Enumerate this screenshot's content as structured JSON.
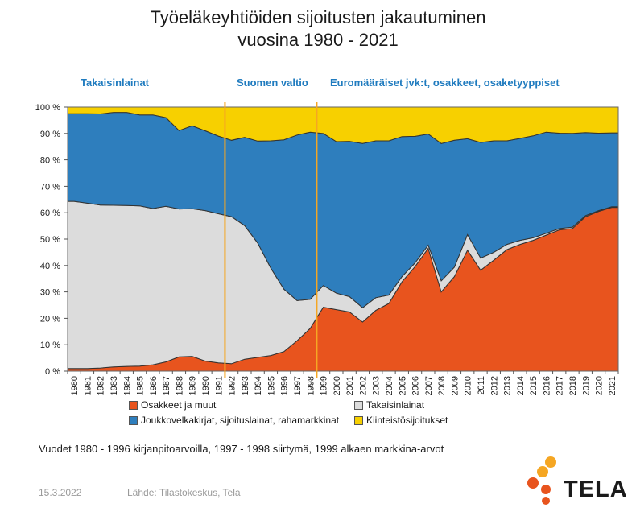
{
  "header": {
    "title_line1": "Työeläkeyhtiöiden sijoitusten jakautuminen",
    "title_line2": "vuosina 1980 - 2021"
  },
  "regions": {
    "left": "Takaisinlainat",
    "middle": "Suomen valtio",
    "right": "Euromääräiset jvk:t, osakkeet, osaketyyppiset"
  },
  "footnote": "Vuodet 1980 - 1996 kirjanpitoarvoilla, 1997 - 1998 siirtymä, 1999 alkaen markkina-arvot",
  "footer": {
    "date": "15.3.2022",
    "source": "Lähde: Tilastokeskus, Tela"
  },
  "logo": {
    "text": "TELA",
    "colors": [
      "#f5a623",
      "#e8541e"
    ]
  },
  "chart_data": {
    "type": "area",
    "stacked": true,
    "x": [
      "1980",
      "1981",
      "1982",
      "1983",
      "1984",
      "1985",
      "1986",
      "1987",
      "1988",
      "1989",
      "1990",
      "1991",
      "1992",
      "1993",
      "1994",
      "1995",
      "1996",
      "1997",
      "1998",
      "1999",
      "2000",
      "2001",
      "2002",
      "2003",
      "2004",
      "2005",
      "2006",
      "2007",
      "2008",
      "2009",
      "2010",
      "2011",
      "2012",
      "2013",
      "2014",
      "2015",
      "2016",
      "2017",
      "2018",
      "2019",
      "2020",
      "2021"
    ],
    "ylim": [
      0,
      100
    ],
    "yticks": [
      "0 %",
      "10 %",
      "20 %",
      "30 %",
      "40 %",
      "50 %",
      "60 %",
      "70 %",
      "80 %",
      "90 %",
      "100 %"
    ],
    "vertical_markers": [
      "1992",
      "1999"
    ],
    "marker_color": "#f5a623",
    "grid": false,
    "legend_position": "bottom",
    "series": [
      {
        "name": "Osakkeet ja muut",
        "color": "#e8541e",
        "values": [
          1,
          1,
          1.2,
          1.6,
          1.8,
          1.9,
          2.4,
          3.5,
          5.4,
          5.6,
          3.8,
          3.1,
          2.8,
          4.5,
          5.2,
          5.9,
          7.4,
          11.5,
          16.2,
          24.2,
          23.3,
          22.4,
          18.6,
          23,
          25.6,
          33.8,
          39.6,
          46.5,
          30,
          35.8,
          45.8,
          38.2,
          42,
          46,
          48,
          49.5,
          51.5,
          53.5,
          54,
          58.5,
          60.5,
          62
        ]
      },
      {
        "name": "Takaisinlainat",
        "color": "#dcdcdc",
        "values": [
          63.3,
          62.6,
          61.7,
          61.2,
          60.9,
          60.7,
          59.2,
          58.9,
          56,
          55.9,
          57,
          56.5,
          55.7,
          50.6,
          43.3,
          33.1,
          23.6,
          15.2,
          11,
          8.2,
          6.2,
          5.8,
          5.4,
          4.8,
          3.2,
          2,
          1.4,
          1.2,
          4.2,
          3.6,
          5.9,
          4.6,
          3,
          2,
          1.5,
          1,
          0.7,
          0.5,
          0.5,
          0.4,
          0.3,
          0.3
        ]
      },
      {
        "name": "Joukkovelkakirjat, sijoituslainat, rahamarkkinat",
        "color": "#2e7ebd",
        "values": [
          33.2,
          33.9,
          34.5,
          35.2,
          35.3,
          34.4,
          35.4,
          33.6,
          29.7,
          31.4,
          30.2,
          29.4,
          28.9,
          33.4,
          38.6,
          48.2,
          56.6,
          62.7,
          63.3,
          57.6,
          57.4,
          58.8,
          62.2,
          59.4,
          58.4,
          53,
          47.9,
          42.1,
          52,
          48,
          36.3,
          43.8,
          42.2,
          39.2,
          38.6,
          38.6,
          38.3,
          36.1,
          35.5,
          31.4,
          29.3,
          27.9
        ]
      },
      {
        "name": "Kiinteistösijoitukset",
        "color": "#f7d000",
        "values": [
          2.5,
          2.5,
          2.6,
          2,
          2,
          3,
          3,
          4,
          8.9,
          7.1,
          9,
          11,
          12.6,
          11.5,
          12.9,
          12.8,
          12.4,
          10.6,
          9.5,
          10,
          13.1,
          13,
          13.8,
          12.8,
          12.8,
          11.2,
          11.1,
          10.2,
          13.8,
          12.6,
          12,
          13.4,
          12.8,
          12.8,
          11.9,
          10.9,
          9.5,
          9.9,
          10,
          9.7,
          9.9,
          9.8
        ]
      }
    ]
  }
}
